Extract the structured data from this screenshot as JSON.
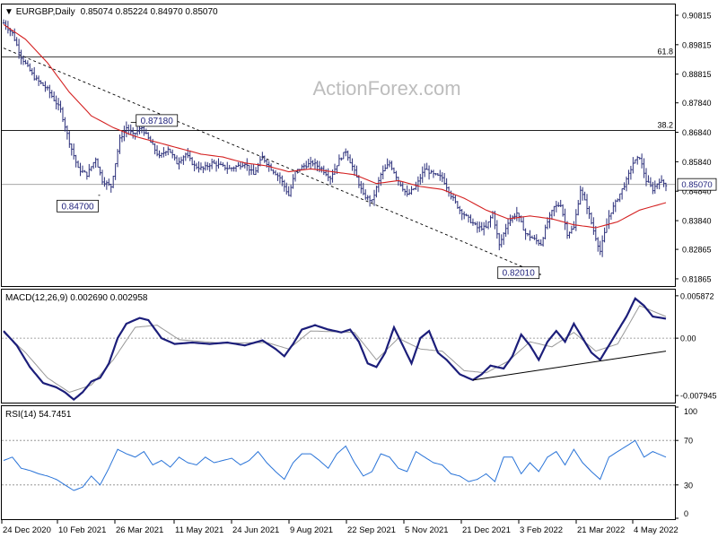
{
  "header": {
    "symbol": "EURGBP,Daily",
    "ohlc": "0.85074 0.85224 0.84970 0.85070"
  },
  "watermark": "ActionForex.com",
  "colors": {
    "background": "#ffffff",
    "price_bars": "#2b2f7a",
    "moving_average": "#d42020",
    "trendline": "#000000",
    "fib_lines": "#000000",
    "macd_line": "#1c1e7a",
    "macd_signal": "#999999",
    "rsi_line": "#2a74d8",
    "grid_dotted": "#888888",
    "label_text": "#1c1e7a"
  },
  "x_axis": {
    "ticks": [
      "24 Dec 2020",
      "10 Feb 2021",
      "26 Mar 2021",
      "11 May 2021",
      "24 Jun 2021",
      "9 Aug 2021",
      "22 Sep 2021",
      "5 Nov 2021",
      "21 Dec 2021",
      "3 Feb 2022",
      "21 Mar 2022",
      "4 May 2022"
    ]
  },
  "chart_data": [
    {
      "type": "ohlc-bar",
      "title": "EURGBP,Daily",
      "y_ticks": [
        "0.90815",
        "0.89815",
        "0.88815",
        "0.87840",
        "0.86840",
        "0.85840",
        "0.84840",
        "0.83840",
        "0.82865",
        "0.81865"
      ],
      "ylim": [
        0.8165,
        0.9115
      ],
      "close_path": [
        [
          0,
          0.9055
        ],
        [
          4,
          0.902
        ],
        [
          8,
          0.894
        ],
        [
          14,
          0.887
        ],
        [
          20,
          0.883
        ],
        [
          26,
          0.876
        ],
        [
          30,
          0.865
        ],
        [
          34,
          0.856
        ],
        [
          38,
          0.854
        ],
        [
          42,
          0.8595
        ],
        [
          45,
          0.852
        ],
        [
          49,
          0.85
        ],
        [
          53,
          0.866
        ],
        [
          56,
          0.87
        ],
        [
          59,
          0.8675
        ],
        [
          63,
          0.87
        ],
        [
          67,
          0.865
        ],
        [
          71,
          0.86
        ],
        [
          75,
          0.863
        ],
        [
          79,
          0.858
        ],
        [
          83,
          0.861
        ],
        [
          87,
          0.857
        ],
        [
          91,
          0.856
        ],
        [
          95,
          0.858
        ],
        [
          99,
          0.857
        ],
        [
          103,
          0.856
        ],
        [
          107,
          0.857
        ],
        [
          110,
          0.858
        ],
        [
          114,
          0.854
        ],
        [
          118,
          0.86
        ],
        [
          122,
          0.856
        ],
        [
          126,
          0.853
        ],
        [
          130,
          0.847
        ],
        [
          133,
          0.855
        ],
        [
          137,
          0.857
        ],
        [
          141,
          0.858
        ],
        [
          145,
          0.856
        ],
        [
          149,
          0.853
        ],
        [
          153,
          0.859
        ],
        [
          156,
          0.862
        ],
        [
          160,
          0.855
        ],
        [
          164,
          0.847
        ],
        [
          168,
          0.845
        ],
        [
          172,
          0.854
        ],
        [
          176,
          0.858
        ],
        [
          180,
          0.852
        ],
        [
          184,
          0.847
        ],
        [
          188,
          0.85
        ],
        [
          192,
          0.856
        ],
        [
          196,
          0.854
        ],
        [
          200,
          0.853
        ],
        [
          204,
          0.847
        ],
        [
          208,
          0.842
        ],
        [
          212,
          0.839
        ],
        [
          216,
          0.836
        ],
        [
          220,
          0.836
        ],
        [
          223,
          0.841
        ],
        [
          226,
          0.83
        ],
        [
          230,
          0.838
        ],
        [
          234,
          0.841
        ],
        [
          238,
          0.834
        ],
        [
          242,
          0.832
        ],
        [
          245,
          0.8305
        ],
        [
          248,
          0.838
        ],
        [
          251,
          0.843
        ],
        [
          254,
          0.844
        ],
        [
          257,
          0.834
        ],
        [
          260,
          0.836
        ],
        [
          263,
          0.849
        ],
        [
          266,
          0.843
        ],
        [
          269,
          0.835
        ],
        [
          272,
          0.828
        ],
        [
          276,
          0.84
        ],
        [
          280,
          0.846
        ],
        [
          284,
          0.852
        ],
        [
          287,
          0.858
        ],
        [
          290,
          0.86
        ],
        [
          293,
          0.852
        ],
        [
          296,
          0.849
        ],
        [
          299,
          0.852
        ],
        [
          302,
          0.8507
        ]
      ],
      "highs_lows": [
        {
          "label": "0.87180",
          "x": 58,
          "y": 0.8718
        },
        {
          "label": "0.84700",
          "x": 44,
          "y": 0.847
        },
        {
          "label": "0.82010",
          "x": 245,
          "y": 0.8201
        }
      ],
      "moving_average": [
        [
          0,
          0.905
        ],
        [
          10,
          0.9
        ],
        [
          20,
          0.892
        ],
        [
          30,
          0.882
        ],
        [
          40,
          0.874
        ],
        [
          50,
          0.87
        ],
        [
          60,
          0.867
        ],
        [
          70,
          0.865
        ],
        [
          80,
          0.863
        ],
        [
          90,
          0.861
        ],
        [
          100,
          0.86
        ],
        [
          110,
          0.858
        ],
        [
          120,
          0.857
        ],
        [
          130,
          0.855
        ],
        [
          140,
          0.856
        ],
        [
          150,
          0.855
        ],
        [
          160,
          0.854
        ],
        [
          170,
          0.851
        ],
        [
          180,
          0.852
        ],
        [
          190,
          0.85
        ],
        [
          200,
          0.849
        ],
        [
          210,
          0.846
        ],
        [
          220,
          0.842
        ],
        [
          230,
          0.839
        ],
        [
          240,
          0.84
        ],
        [
          250,
          0.839
        ],
        [
          260,
          0.837
        ],
        [
          270,
          0.836
        ],
        [
          280,
          0.838
        ],
        [
          290,
          0.842
        ],
        [
          302,
          0.8445
        ]
      ],
      "trendline": [
        [
          0,
          0.897
        ],
        [
          245,
          0.8201
        ]
      ],
      "fib_levels": [
        {
          "label": "61.8",
          "value": 0.894
        },
        {
          "label": "38.2",
          "value": 0.869
        }
      ],
      "horizontal_line": 0.8507,
      "last_price_label": "0.85070"
    },
    {
      "type": "line",
      "title": "MACD(12,26,9) 0.002690 0.002958",
      "y_ticks": [
        "0.005872",
        "0.00",
        "-0.007945"
      ],
      "ylim": [
        -0.0088,
        0.0066
      ],
      "macd": [
        [
          0,
          0.001
        ],
        [
          6,
          -0.001
        ],
        [
          12,
          -0.004
        ],
        [
          18,
          -0.0062
        ],
        [
          24,
          -0.0068
        ],
        [
          28,
          -0.0075
        ],
        [
          32,
          -0.0085
        ],
        [
          36,
          -0.0075
        ],
        [
          40,
          -0.006
        ],
        [
          44,
          -0.0055
        ],
        [
          48,
          -0.0035
        ],
        [
          52,
          0.0
        ],
        [
          56,
          0.002
        ],
        [
          62,
          0.0028
        ],
        [
          66,
          0.0025
        ],
        [
          72,
          0.0
        ],
        [
          78,
          -0.0008
        ],
        [
          86,
          -0.0006
        ],
        [
          94,
          -0.0008
        ],
        [
          102,
          -0.0006
        ],
        [
          110,
          -0.001
        ],
        [
          118,
          -0.0003
        ],
        [
          124,
          -0.0015
        ],
        [
          128,
          -0.0025
        ],
        [
          132,
          -0.0008
        ],
        [
          136,
          0.0012
        ],
        [
          142,
          0.0018
        ],
        [
          148,
          0.0012
        ],
        [
          154,
          0.0008
        ],
        [
          158,
          0.0012
        ],
        [
          162,
          -0.0005
        ],
        [
          166,
          -0.0035
        ],
        [
          170,
          -0.004
        ],
        [
          174,
          -0.002
        ],
        [
          178,
          0.0015
        ],
        [
          182,
          -0.001
        ],
        [
          186,
          -0.0035
        ],
        [
          190,
          0.0
        ],
        [
          194,
          0.001
        ],
        [
          198,
          -0.002
        ],
        [
          202,
          -0.003
        ],
        [
          208,
          -0.005
        ],
        [
          214,
          -0.0058
        ],
        [
          218,
          -0.005
        ],
        [
          222,
          -0.0038
        ],
        [
          228,
          -0.0042
        ],
        [
          232,
          -0.0025
        ],
        [
          236,
          0.0005
        ],
        [
          240,
          -0.001
        ],
        [
          244,
          -0.003
        ],
        [
          248,
          -0.0005
        ],
        [
          252,
          0.001
        ],
        [
          256,
          -0.0005
        ],
        [
          260,
          0.002
        ],
        [
          264,
          0.0
        ],
        [
          268,
          -0.002
        ],
        [
          272,
          -0.003
        ],
        [
          276,
          -0.001
        ],
        [
          280,
          0.001
        ],
        [
          284,
          0.003
        ],
        [
          288,
          0.0055
        ],
        [
          292,
          0.0045
        ],
        [
          296,
          0.003
        ],
        [
          302,
          0.0027
        ]
      ],
      "signal": [
        [
          0,
          0.0008
        ],
        [
          10,
          -0.002
        ],
        [
          20,
          -0.0055
        ],
        [
          30,
          -0.0075
        ],
        [
          40,
          -0.0065
        ],
        [
          50,
          -0.003
        ],
        [
          60,
          0.0015
        ],
        [
          70,
          0.0018
        ],
        [
          80,
          -0.0002
        ],
        [
          100,
          -0.0007
        ],
        [
          120,
          -0.0006
        ],
        [
          130,
          -0.0015
        ],
        [
          140,
          0.001
        ],
        [
          160,
          0.0008
        ],
        [
          170,
          -0.003
        ],
        [
          180,
          0.0
        ],
        [
          190,
          -0.0015
        ],
        [
          200,
          -0.0018
        ],
        [
          210,
          -0.0045
        ],
        [
          220,
          -0.0048
        ],
        [
          230,
          -0.0032
        ],
        [
          240,
          -0.0005
        ],
        [
          250,
          -0.0012
        ],
        [
          260,
          0.0008
        ],
        [
          270,
          -0.0018
        ],
        [
          280,
          -0.0008
        ],
        [
          290,
          0.0045
        ],
        [
          302,
          0.003
        ]
      ],
      "trendline": [
        [
          214,
          -0.0058
        ],
        [
          302,
          -0.0018
        ]
      ]
    },
    {
      "type": "line",
      "title": "RSI(14) 54.7451",
      "y_ticks": [
        "100",
        "70",
        "30",
        "0"
      ],
      "ylim": [
        0,
        100
      ],
      "levels": [
        70,
        30
      ],
      "rsi": [
        [
          0,
          52
        ],
        [
          4,
          55
        ],
        [
          8,
          45
        ],
        [
          12,
          43
        ],
        [
          16,
          40
        ],
        [
          20,
          38
        ],
        [
          24,
          35
        ],
        [
          28,
          30
        ],
        [
          32,
          25
        ],
        [
          36,
          28
        ],
        [
          40,
          38
        ],
        [
          44,
          30
        ],
        [
          48,
          45
        ],
        [
          52,
          62
        ],
        [
          56,
          58
        ],
        [
          60,
          55
        ],
        [
          64,
          60
        ],
        [
          68,
          48
        ],
        [
          72,
          52
        ],
        [
          76,
          46
        ],
        [
          80,
          55
        ],
        [
          84,
          50
        ],
        [
          88,
          48
        ],
        [
          92,
          55
        ],
        [
          96,
          50
        ],
        [
          100,
          52
        ],
        [
          104,
          54
        ],
        [
          108,
          48
        ],
        [
          112,
          52
        ],
        [
          116,
          60
        ],
        [
          120,
          50
        ],
        [
          124,
          42
        ],
        [
          128,
          35
        ],
        [
          132,
          50
        ],
        [
          136,
          58
        ],
        [
          140,
          58
        ],
        [
          144,
          52
        ],
        [
          148,
          45
        ],
        [
          152,
          58
        ],
        [
          156,
          65
        ],
        [
          160,
          50
        ],
        [
          164,
          38
        ],
        [
          168,
          42
        ],
        [
          172,
          58
        ],
        [
          176,
          55
        ],
        [
          180,
          45
        ],
        [
          184,
          42
        ],
        [
          188,
          60
        ],
        [
          192,
          55
        ],
        [
          196,
          50
        ],
        [
          200,
          48
        ],
        [
          204,
          40
        ],
        [
          208,
          38
        ],
        [
          212,
          33
        ],
        [
          216,
          35
        ],
        [
          220,
          40
        ],
        [
          224,
          33
        ],
        [
          228,
          55
        ],
        [
          232,
          55
        ],
        [
          236,
          40
        ],
        [
          240,
          50
        ],
        [
          244,
          42
        ],
        [
          248,
          55
        ],
        [
          252,
          60
        ],
        [
          256,
          48
        ],
        [
          260,
          62
        ],
        [
          264,
          50
        ],
        [
          268,
          42
        ],
        [
          272,
          35
        ],
        [
          276,
          55
        ],
        [
          280,
          60
        ],
        [
          284,
          65
        ],
        [
          288,
          70
        ],
        [
          292,
          55
        ],
        [
          296,
          60
        ],
        [
          302,
          55
        ]
      ]
    }
  ]
}
